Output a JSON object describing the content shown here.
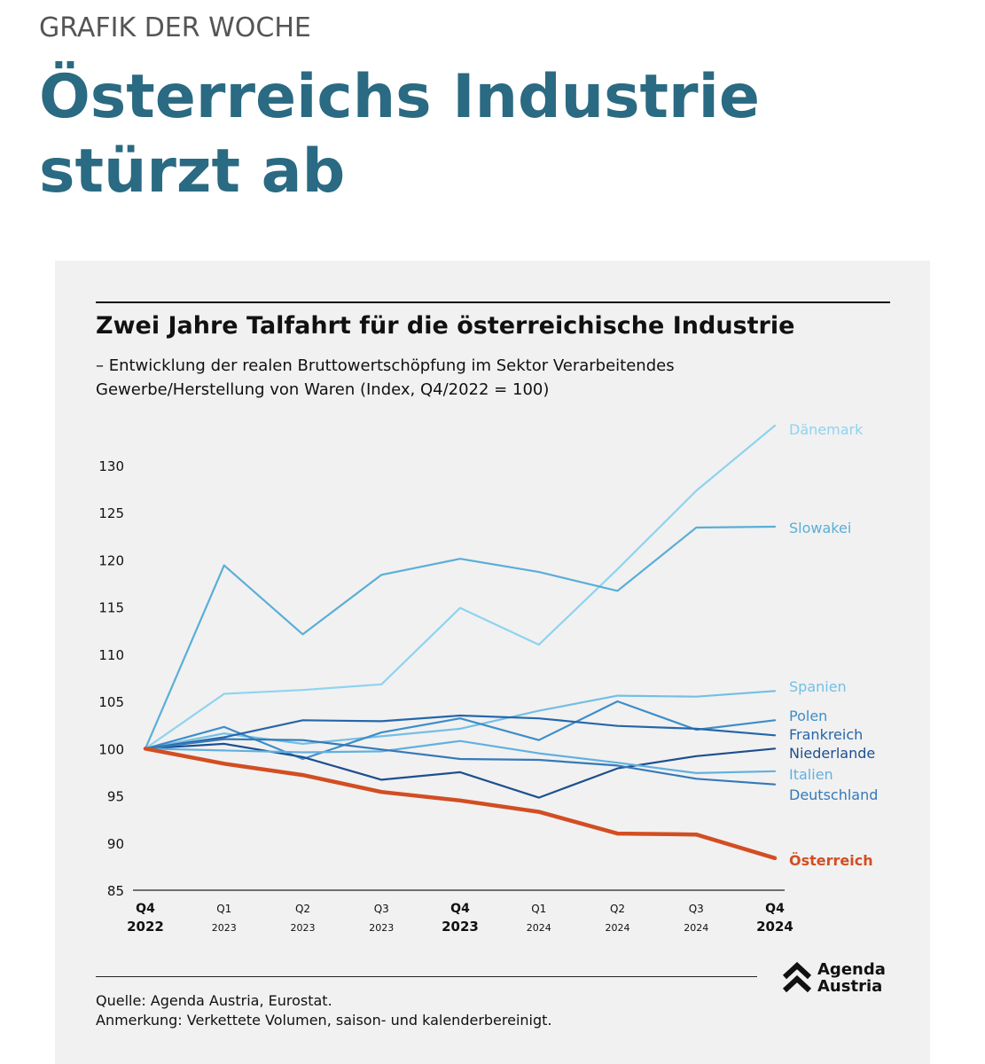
{
  "page": {
    "kicker": "GRAFIK DER WOCHE",
    "headline": "Österreichs Industrie stürzt ab"
  },
  "chart_data": {
    "type": "line",
    "title": "Zwei Jahre Talfahrt für die österreichische Industrie",
    "subtitle_line1": "– Entwicklung der realen Bruttowertschöpfung im Sektor Verarbeitendes",
    "subtitle_line2": "Gewerbe/Herstellung von Waren (Index, Q4/2022 = 100)",
    "xlabel": "",
    "ylabel": "",
    "ylim": [
      85,
      135
    ],
    "yticks": [
      85,
      90,
      95,
      100,
      105,
      110,
      115,
      120,
      125,
      130
    ],
    "categories": [
      {
        "q": "Q4",
        "y": "2022",
        "bold": true
      },
      {
        "q": "Q1",
        "y": "2023",
        "bold": false
      },
      {
        "q": "Q2",
        "y": "2023",
        "bold": false
      },
      {
        "q": "Q3",
        "y": "2023",
        "bold": false
      },
      {
        "q": "Q4",
        "y": "2023",
        "bold": true
      },
      {
        "q": "Q1",
        "y": "2024",
        "bold": false
      },
      {
        "q": "Q2",
        "y": "2024",
        "bold": false
      },
      {
        "q": "Q3",
        "y": "2024",
        "bold": false
      },
      {
        "q": "Q4",
        "y": "2024",
        "bold": true
      }
    ],
    "series": [
      {
        "name": "Dänemark",
        "color": "#8fd3ef",
        "values": [
          100,
          105.8,
          106.2,
          106.8,
          114.9,
          111.0,
          119.0,
          127.3,
          134.2
        ]
      },
      {
        "name": "Slowakei",
        "color": "#5aaed8",
        "values": [
          100,
          119.4,
          112.1,
          118.4,
          120.1,
          118.7,
          116.7,
          123.4,
          123.5
        ]
      },
      {
        "name": "Spanien",
        "color": "#73bfe6",
        "values": [
          100,
          101.6,
          100.5,
          101.3,
          102.1,
          104.0,
          105.6,
          105.5,
          106.1
        ]
      },
      {
        "name": "Polen",
        "color": "#3d8ec8",
        "values": [
          100,
          102.3,
          98.9,
          101.7,
          103.2,
          100.9,
          105.0,
          102.0,
          103.0
        ]
      },
      {
        "name": "Frankreich",
        "color": "#2566a8",
        "values": [
          100,
          101.2,
          103.0,
          102.9,
          103.5,
          103.2,
          102.4,
          102.1,
          101.4
        ]
      },
      {
        "name": "Niederlande",
        "color": "#1d4f8e",
        "values": [
          100,
          100.5,
          99.1,
          96.7,
          97.5,
          94.8,
          97.9,
          99.2,
          100.0
        ]
      },
      {
        "name": "Italien",
        "color": "#62b0e0",
        "values": [
          100,
          99.8,
          99.6,
          99.7,
          100.8,
          99.5,
          98.5,
          97.4,
          97.6
        ]
      },
      {
        "name": "Deutschland",
        "color": "#3579b8",
        "values": [
          100,
          101.0,
          100.9,
          99.9,
          98.9,
          98.8,
          98.2,
          96.8,
          96.2
        ]
      },
      {
        "name": "Österreich",
        "color": "#d24e22",
        "values": [
          100,
          98.4,
          97.2,
          95.4,
          94.5,
          93.3,
          91.0,
          90.9,
          88.4
        ],
        "highlight": true
      }
    ],
    "grid": false,
    "legend": "direct labels right"
  },
  "footer": {
    "source": "Quelle: Agenda Austria, Eurostat.",
    "note": "Anmerkung: Verkettete Volumen, saison- und kalenderbereinigt.",
    "logo_line1": "Agenda",
    "logo_line2": "Austria"
  }
}
